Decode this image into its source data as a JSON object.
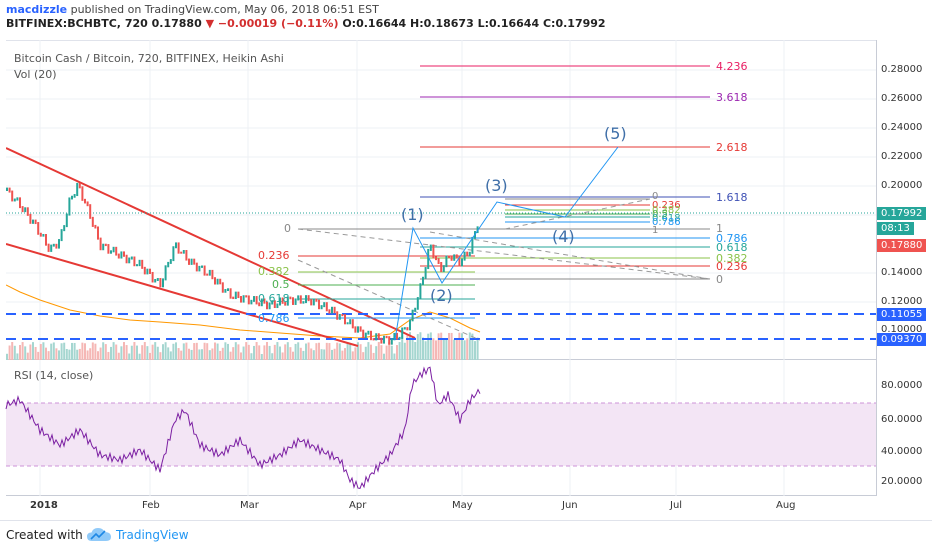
{
  "header": {
    "user": "macdizzle",
    "published": "published on TradingView.com, May 06, 2018 06:51 EST",
    "symbol": "BITFINEX:BCHBTC, 720",
    "last": "0.17880",
    "change": "−0.00019 (−0.11%)",
    "o_label": "O:",
    "o": "0.16644",
    "h_label": "H:",
    "h": "0.18673",
    "l_label": "L:",
    "l": "0.16644",
    "c_label": "C:",
    "c": "0.17992"
  },
  "chart": {
    "legend_title": "Bitcoin Cash / Bitcoin, 720, BITFINEX, Heikin Ashi",
    "legend_vol": "Vol (20)",
    "price_ticks": [
      "0.28000",
      "0.26000",
      "0.24000",
      "0.22000",
      "0.20000",
      "0.18000",
      "0.14000",
      "0.12000",
      "0.10000"
    ],
    "badges": [
      {
        "text": "0.17992",
        "color": "#26a69a"
      },
      {
        "text": "08:13",
        "color": "#26a69a"
      },
      {
        "text": "0.17880",
        "color": "#ef5350"
      },
      {
        "text": "0.11055",
        "color": "#2962ff"
      },
      {
        "text": "0.09370",
        "color": "#2962ff"
      }
    ],
    "fib_ext_labels": [
      "4.236",
      "3.618",
      "2.618",
      "1.618",
      "1",
      "0.786",
      "0.618",
      "0.382",
      "0.236",
      "0"
    ],
    "fib_retr_labels": [
      "0",
      "0.236",
      "0.382",
      "0.5",
      "0.618",
      "0.786"
    ],
    "fib_small_labels": [
      "0",
      "0.236",
      "0.382",
      "0.5",
      "0.618",
      "0.786",
      "1"
    ],
    "wave_labels": [
      "(1)",
      "(2)",
      "(3)",
      "(4)",
      "(5)"
    ],
    "x_labels": [
      "2018",
      "Feb",
      "Mar",
      "Apr",
      "May",
      "Jun",
      "Jul",
      "Aug"
    ],
    "rsi_legend": "RSI (14, close)",
    "rsi_ticks": [
      "80.0000",
      "60.0000",
      "40.0000",
      "20.0000"
    ],
    "colors": {
      "up": "#26a69a",
      "down": "#ef5350",
      "rsi": "#7b1fa2",
      "band": "#e1bee7",
      "level": "#2962ff"
    }
  },
  "footer": {
    "created": "Created with",
    "brand": "TradingView"
  }
}
